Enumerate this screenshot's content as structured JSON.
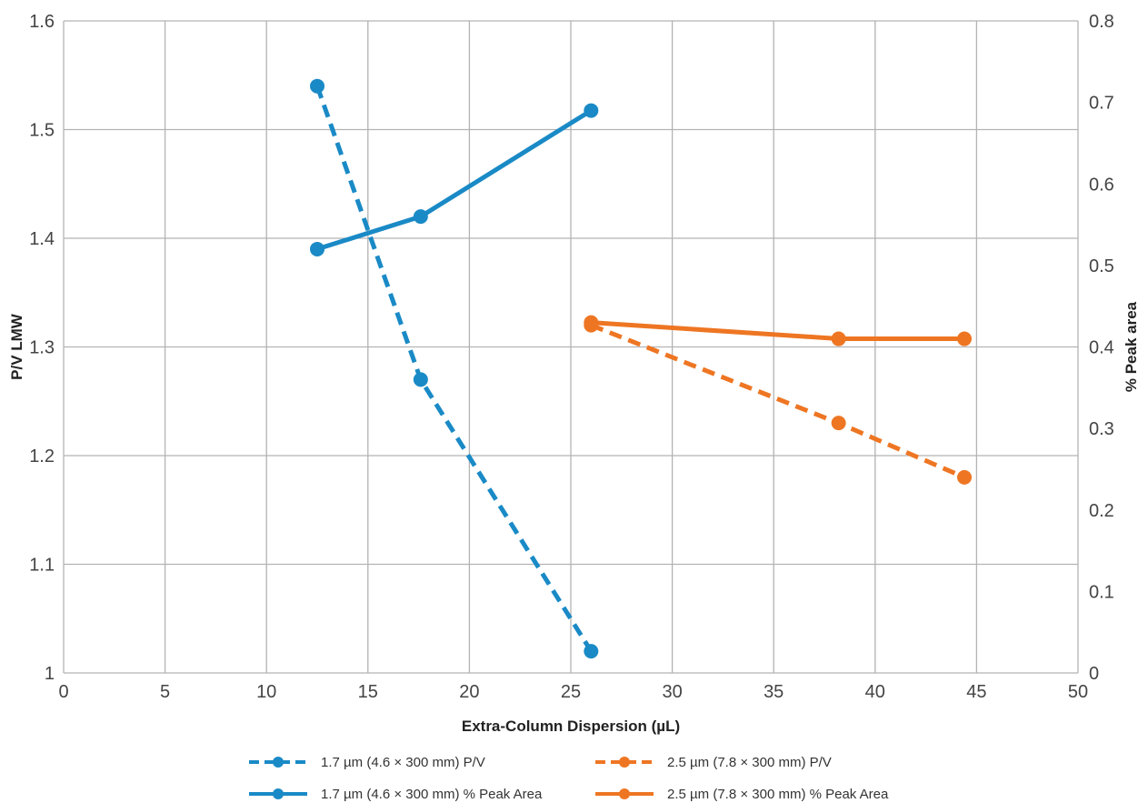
{
  "chart_data": {
    "type": "line",
    "title": "",
    "xlabel": "Extra-Column Dispersion (µL)",
    "ylabel": "P/V LMW",
    "y2label": "% Peak area",
    "xlim": [
      0,
      50
    ],
    "ylim": [
      1,
      1.6
    ],
    "y2lim": [
      0,
      0.8
    ],
    "x_ticks": [
      "0",
      "5",
      "10",
      "15",
      "20",
      "25",
      "30",
      "35",
      "40",
      "45",
      "50"
    ],
    "y_ticks": [
      "1",
      "1.1",
      "1.2",
      "1.3",
      "1.4",
      "1.5",
      "1.6"
    ],
    "y2_ticks": [
      "0",
      "0.1",
      "0.2",
      "0.3",
      "0.4",
      "0.5",
      "0.6",
      "0.7",
      "0.8"
    ],
    "grid": true,
    "legend_position": "bottom",
    "series": [
      {
        "name": "1.7 µm (4.6 × 300 mm) P/V",
        "axis": "left",
        "style": "dashed",
        "color": "#1a8ac6",
        "x": [
          12.5,
          17.6,
          26
        ],
        "y": [
          1.54,
          1.27,
          1.02
        ]
      },
      {
        "name": "2.5 µm (7.8 × 300 mm) P/V",
        "axis": "left",
        "style": "dashed",
        "color": "#ee7623",
        "x": [
          26,
          38.2,
          44.4
        ],
        "y": [
          1.32,
          1.23,
          1.18
        ]
      },
      {
        "name": "1.7 µm (4.6 × 300 mm) % Peak Area",
        "axis": "right",
        "style": "solid",
        "color": "#1a8ac6",
        "x": [
          12.5,
          17.6,
          26
        ],
        "y": [
          0.52,
          0.56,
          0.69
        ]
      },
      {
        "name": "2.5 µm (7.8 × 300 mm) % Peak Area",
        "axis": "right",
        "style": "solid",
        "color": "#ee7623",
        "x": [
          26,
          38.2,
          44.4
        ],
        "y": [
          0.43,
          0.41,
          0.41
        ]
      }
    ]
  }
}
